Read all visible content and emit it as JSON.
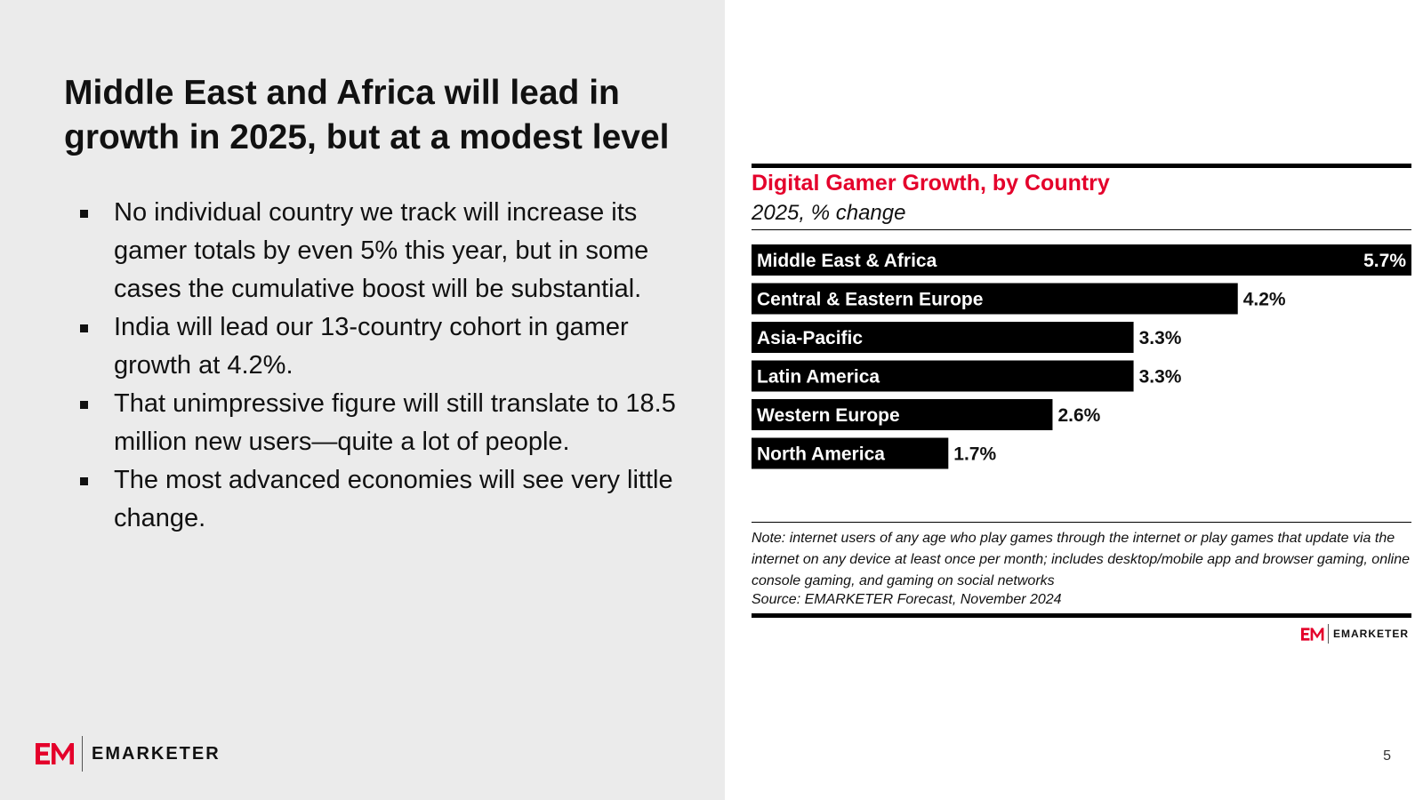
{
  "slide": {
    "title": "Middle East and Africa will lead in growth in 2025, but at a modest level",
    "bullets": [
      "No individual country we track will increase its gamer totals by even 5% this year, but in some cases the cumulative boost will be substantial.",
      "India will lead our 13-country cohort in gamer growth at 4.2%.",
      "That unimpressive figure will still translate to 18.5 million new users—quite a lot of people.",
      "The most advanced economies will see very little change."
    ],
    "page_number": "5",
    "brand": "EMARKETER"
  },
  "chart_data": {
    "type": "bar",
    "orientation": "horizontal",
    "title": "Digital Gamer Growth, by Country",
    "subtitle": "2025, % change",
    "categories": [
      "Middle East & Africa",
      "Central & Eastern Europe",
      "Asia-Pacific",
      "Latin America",
      "Western Europe",
      "North America"
    ],
    "values": [
      5.7,
      4.2,
      3.3,
      3.3,
      2.6,
      1.7
    ],
    "value_labels": [
      "5.7%",
      "4.2%",
      "3.3%",
      "3.3%",
      "2.6%",
      "1.7%"
    ],
    "xlim": [
      0,
      5.7
    ],
    "grid": false,
    "legend": "none",
    "note": "Note: internet users of any age who play games through the internet or play games that update via the internet on any device at least once per month; includes desktop/mobile app and browser gaming, online console gaming, and gaming on social networks",
    "source": "Source: EMARKETER Forecast, November 2024"
  },
  "colors": {
    "bar": "#000000",
    "accent": "#e4002b",
    "left_panel_bg": "#ebebeb"
  },
  "icons": {
    "brand_logo": "em-logo-icon"
  }
}
